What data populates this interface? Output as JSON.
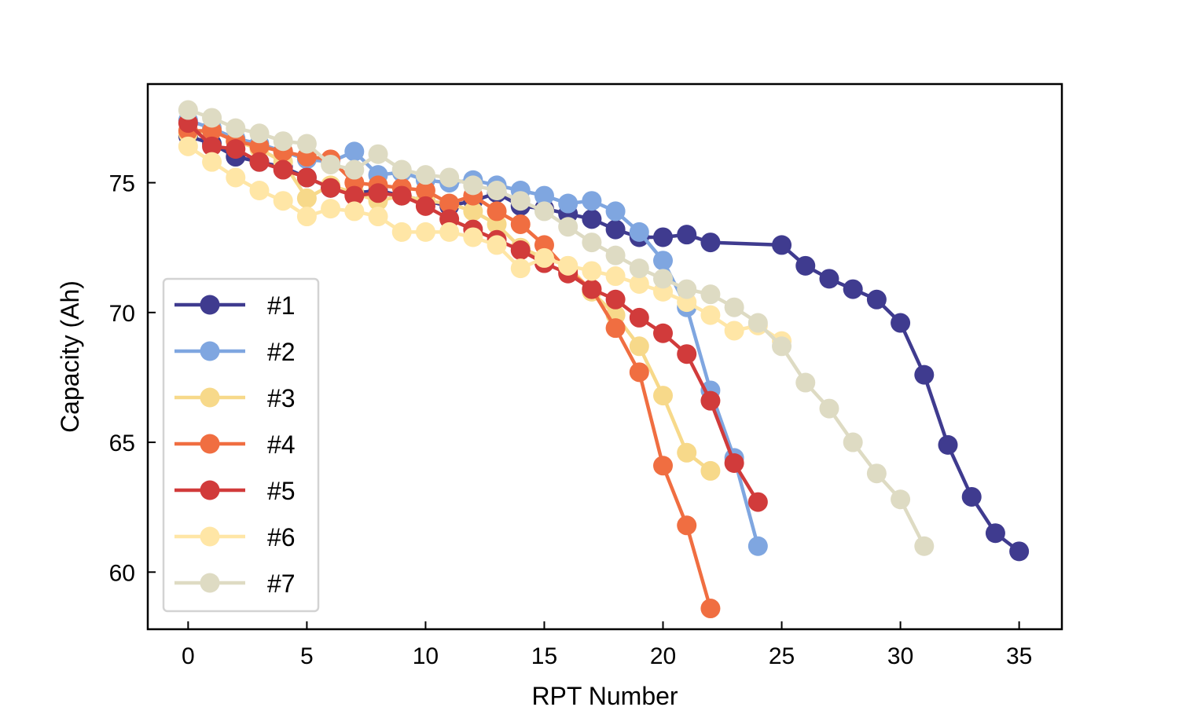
{
  "chart_data": {
    "type": "line",
    "title": "",
    "xlabel": "RPT Number",
    "ylabel": "Capacity (Ah)",
    "xlim": [
      -1.7,
      36.8
    ],
    "ylim": [
      57.8,
      78.8
    ],
    "xticks": [
      0,
      5,
      10,
      15,
      20,
      25,
      30,
      35
    ],
    "yticks": [
      60,
      65,
      70,
      75
    ],
    "grid": false,
    "legend_position": "lower-left",
    "markers": "circle",
    "series": [
      {
        "name": "#1",
        "color": "#3f3b8f",
        "x": [
          0,
          1,
          2,
          3,
          4,
          5,
          6,
          7,
          8,
          9,
          10,
          11,
          12,
          13,
          14,
          15,
          16,
          17,
          18,
          19,
          20,
          21,
          22,
          25,
          26,
          27,
          28,
          29,
          30,
          31,
          32,
          33,
          34,
          35
        ],
        "y": [
          76.8,
          76.5,
          76.0,
          75.8,
          75.6,
          75.2,
          74.8,
          74.6,
          74.7,
          74.5,
          74.3,
          74.1,
          74.3,
          74.6,
          74.1,
          74.0,
          73.8,
          73.6,
          73.2,
          72.9,
          72.9,
          73.0,
          72.7,
          72.6,
          71.8,
          71.3,
          70.9,
          70.5,
          69.6,
          67.6,
          64.9,
          62.9,
          61.5,
          60.8
        ]
      },
      {
        "name": "#2",
        "color": "#7fa6e0",
        "x": [
          0,
          1,
          2,
          3,
          4,
          5,
          6,
          7,
          8,
          9,
          10,
          11,
          12,
          13,
          14,
          15,
          16,
          17,
          18,
          19,
          20,
          21,
          22,
          23,
          24
        ],
        "y": [
          77.4,
          77.1,
          76.7,
          76.5,
          76.2,
          75.9,
          75.8,
          76.2,
          75.3,
          75.4,
          75.1,
          75.0,
          75.1,
          74.9,
          74.7,
          74.5,
          74.2,
          74.3,
          73.9,
          73.1,
          72.0,
          70.2,
          67.0,
          64.4,
          61.0
        ]
      },
      {
        "name": "#3",
        "color": "#f7d98a",
        "x": [
          0,
          1,
          2,
          3,
          4,
          5,
          6,
          7,
          8,
          9,
          10,
          11,
          12,
          13,
          14,
          15,
          16,
          17,
          18,
          19,
          20,
          21,
          22
        ],
        "y": [
          76.9,
          77.0,
          76.6,
          76.3,
          75.8,
          74.4,
          74.9,
          74.6,
          74.3,
          74.5,
          74.3,
          74.2,
          73.9,
          73.4,
          72.5,
          72.1,
          71.8,
          70.8,
          69.9,
          68.7,
          66.8,
          64.6,
          63.9
        ]
      },
      {
        "name": "#4",
        "color": "#f06e41",
        "x": [
          0,
          1,
          2,
          3,
          4,
          5,
          6,
          7,
          8,
          9,
          10,
          11,
          12,
          13,
          14,
          15,
          16,
          17,
          18,
          19,
          20,
          21,
          22
        ],
        "y": [
          77.0,
          77.0,
          76.6,
          76.4,
          76.2,
          76.0,
          75.9,
          75.0,
          74.9,
          74.8,
          74.7,
          74.2,
          74.5,
          73.9,
          73.4,
          72.6,
          71.6,
          70.9,
          69.4,
          67.7,
          64.1,
          61.8,
          58.6
        ]
      },
      {
        "name": "#5",
        "color": "#d13b3b",
        "x": [
          0,
          1,
          2,
          3,
          4,
          5,
          6,
          7,
          8,
          9,
          10,
          11,
          12,
          13,
          14,
          15,
          16,
          17,
          18,
          19,
          20,
          21,
          22,
          23,
          24
        ],
        "y": [
          77.3,
          76.4,
          76.3,
          75.8,
          75.5,
          75.2,
          74.8,
          74.5,
          74.6,
          74.5,
          74.1,
          73.6,
          73.2,
          72.8,
          72.4,
          71.9,
          71.5,
          70.9,
          70.5,
          69.8,
          69.2,
          68.4,
          66.6,
          64.2,
          62.7
        ]
      },
      {
        "name": "#6",
        "color": "#ffe6a6",
        "x": [
          0,
          1,
          2,
          3,
          4,
          5,
          6,
          7,
          8,
          9,
          10,
          11,
          12,
          13,
          14,
          15,
          16,
          17,
          18,
          19,
          20,
          21,
          22,
          23,
          24,
          25
        ],
        "y": [
          76.4,
          75.8,
          75.2,
          74.7,
          74.3,
          73.7,
          74.0,
          73.9,
          73.7,
          73.1,
          73.1,
          73.1,
          72.9,
          72.6,
          71.7,
          72.1,
          71.8,
          71.6,
          71.4,
          71.1,
          70.8,
          70.4,
          69.9,
          69.3,
          69.5,
          68.9
        ]
      },
      {
        "name": "#7",
        "color": "#dedbc3",
        "x": [
          0,
          1,
          2,
          3,
          4,
          5,
          6,
          7,
          8,
          9,
          10,
          11,
          12,
          13,
          14,
          15,
          16,
          17,
          18,
          19,
          20,
          21,
          22,
          23,
          24,
          25,
          26,
          27,
          28,
          29,
          30,
          31
        ],
        "y": [
          77.8,
          77.5,
          77.1,
          76.9,
          76.6,
          76.5,
          75.7,
          75.5,
          76.1,
          75.5,
          75.3,
          75.2,
          74.9,
          74.7,
          74.3,
          73.9,
          73.3,
          72.7,
          72.2,
          71.7,
          71.3,
          70.9,
          70.7,
          70.2,
          69.6,
          68.7,
          67.3,
          66.3,
          65.0,
          63.8,
          62.8,
          61.0
        ]
      }
    ]
  }
}
